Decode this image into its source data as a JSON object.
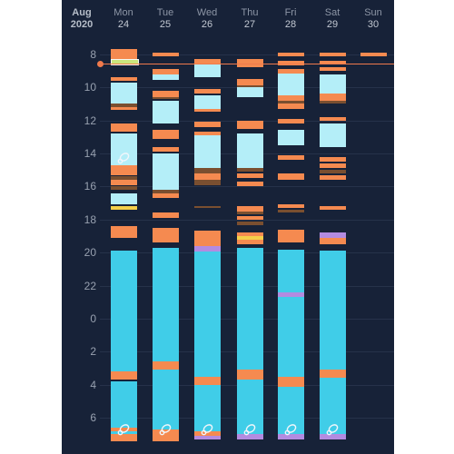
{
  "header": {
    "month": "Aug",
    "year": "2020",
    "days": [
      {
        "name": "Mon",
        "num": "24"
      },
      {
        "name": "Tue",
        "num": "25"
      },
      {
        "name": "Wed",
        "num": "26"
      },
      {
        "name": "Thu",
        "num": "27"
      },
      {
        "name": "Fri",
        "num": "28"
      },
      {
        "name": "Sat",
        "num": "29"
      },
      {
        "name": "Sun",
        "num": "30"
      }
    ]
  },
  "time_axis": {
    "labels": [
      "8",
      "10",
      "12",
      "14",
      "16",
      "18",
      "20",
      "22",
      "0",
      "2",
      "4",
      "6"
    ],
    "start_hour": 7.3,
    "end_hour": 31.6
  },
  "current_time_hour": 8.55,
  "colors": {
    "background": "#172238",
    "sleep": "#40cde8",
    "light_sleep": "#b4eef8",
    "feed": "#f58a50",
    "diaper": "#7a4f30",
    "nap_pale": "#b4eef8",
    "bath": "#f5cf4a",
    "medicine": "#b38be0",
    "green": "#cbe67d",
    "now_line": "#f07a4c"
  },
  "icons": {
    "sleep_marker": "pacifier-icon"
  },
  "events": [
    [
      {
        "t": "feed",
        "s": 7.7,
        "e": 8.3
      },
      {
        "t": "green",
        "s": 8.3,
        "e": 8.55
      },
      {
        "t": "feed",
        "s": 9.4,
        "e": 9.6
      },
      {
        "t": "light",
        "s": 9.7,
        "e": 11.0
      },
      {
        "t": "diaper",
        "s": 11.0,
        "e": 11.2
      },
      {
        "t": "feed",
        "s": 11.2,
        "e": 11.35
      },
      {
        "t": "feed",
        "s": 12.2,
        "e": 12.7
      },
      {
        "t": "light",
        "s": 12.8,
        "e": 14.7
      },
      {
        "t": "feed",
        "s": 14.7,
        "e": 15.3
      },
      {
        "t": "diaper",
        "s": 15.4,
        "e": 15.6
      },
      {
        "t": "feed",
        "s": 15.6,
        "e": 15.9
      },
      {
        "t": "diaper",
        "s": 16.0,
        "e": 16.2
      },
      {
        "t": "light",
        "s": 16.4,
        "e": 17.1
      },
      {
        "t": "bath",
        "s": 17.2,
        "e": 17.4
      },
      {
        "t": "feed",
        "s": 18.4,
        "e": 19.1
      },
      {
        "t": "sleep",
        "s": 19.9,
        "e": 27.2
      },
      {
        "t": "feed",
        "s": 27.2,
        "e": 27.7
      },
      {
        "t": "sleep",
        "s": 27.8,
        "e": 30.6
      },
      {
        "t": "feed",
        "s": 30.6,
        "e": 30.8
      },
      {
        "t": "sleep",
        "s": 30.8,
        "e": 31.0
      },
      {
        "t": "feed",
        "s": 31.0,
        "e": 31.4
      }
    ],
    [
      {
        "t": "feed",
        "s": 7.9,
        "e": 8.15
      },
      {
        "t": "feed",
        "s": 8.9,
        "e": 9.2
      },
      {
        "t": "light",
        "s": 9.2,
        "e": 9.55
      },
      {
        "t": "feed",
        "s": 10.2,
        "e": 10.6
      },
      {
        "t": "diaper",
        "s": 10.6,
        "e": 10.7
      },
      {
        "t": "light",
        "s": 10.8,
        "e": 12.2
      },
      {
        "t": "feed",
        "s": 12.6,
        "e": 13.1
      },
      {
        "t": "feed",
        "s": 13.6,
        "e": 13.9
      },
      {
        "t": "light",
        "s": 14.0,
        "e": 16.2
      },
      {
        "t": "diaper",
        "s": 16.2,
        "e": 16.4
      },
      {
        "t": "feed",
        "s": 16.4,
        "e": 16.7
      },
      {
        "t": "feed",
        "s": 17.6,
        "e": 17.9
      },
      {
        "t": "feed",
        "s": 18.5,
        "e": 19.4
      },
      {
        "t": "sleep",
        "s": 19.7,
        "e": 26.6
      },
      {
        "t": "feed",
        "s": 26.6,
        "e": 27.1
      },
      {
        "t": "sleep",
        "s": 27.1,
        "e": 30.7
      },
      {
        "t": "feed",
        "s": 30.7,
        "e": 31.4
      }
    ],
    [
      {
        "t": "feed",
        "s": 8.3,
        "e": 8.55
      },
      {
        "t": "light",
        "s": 8.6,
        "e": 9.4
      },
      {
        "t": "feed",
        "s": 10.1,
        "e": 10.4
      },
      {
        "t": "light",
        "s": 10.5,
        "e": 11.3
      },
      {
        "t": "feed",
        "s": 11.3,
        "e": 11.5
      },
      {
        "t": "feed",
        "s": 12.1,
        "e": 12.4
      },
      {
        "t": "feed",
        "s": 12.7,
        "e": 12.9
      },
      {
        "t": "light",
        "s": 12.9,
        "e": 14.9
      },
      {
        "t": "diaper",
        "s": 14.9,
        "e": 15.2
      },
      {
        "t": "feed",
        "s": 15.2,
        "e": 15.6
      },
      {
        "t": "diaper",
        "s": 15.6,
        "e": 15.9
      },
      {
        "t": "diaper",
        "s": 17.2,
        "e": 17.3
      },
      {
        "t": "feed",
        "s": 18.7,
        "e": 19.6
      },
      {
        "t": "medicine",
        "s": 19.6,
        "e": 19.95
      },
      {
        "t": "sleep",
        "s": 19.95,
        "e": 27.5
      },
      {
        "t": "feed",
        "s": 27.5,
        "e": 28.0
      },
      {
        "t": "sleep",
        "s": 28.0,
        "e": 30.8
      },
      {
        "t": "feed",
        "s": 30.8,
        "e": 31.1
      },
      {
        "t": "medicine",
        "s": 31.1,
        "e": 31.3
      }
    ],
    [
      {
        "t": "feed",
        "s": 8.3,
        "e": 8.8
      },
      {
        "t": "feed",
        "s": 9.5,
        "e": 9.9
      },
      {
        "t": "diaper",
        "s": 9.9,
        "e": 10.0
      },
      {
        "t": "light",
        "s": 10.0,
        "e": 10.6
      },
      {
        "t": "feed",
        "s": 12.0,
        "e": 12.5
      },
      {
        "t": "light",
        "s": 12.8,
        "e": 14.9
      },
      {
        "t": "diaper",
        "s": 14.9,
        "e": 15.1
      },
      {
        "t": "feed",
        "s": 15.2,
        "e": 15.5
      },
      {
        "t": "feed",
        "s": 15.7,
        "e": 16.0
      },
      {
        "t": "feed",
        "s": 17.2,
        "e": 17.5
      },
      {
        "t": "diaper",
        "s": 17.5,
        "e": 17.7
      },
      {
        "t": "feed",
        "s": 17.8,
        "e": 18.0
      },
      {
        "t": "diaper",
        "s": 18.1,
        "e": 18.35
      },
      {
        "t": "feed",
        "s": 18.8,
        "e": 19.0
      },
      {
        "t": "bath",
        "s": 19.0,
        "e": 19.25
      },
      {
        "t": "feed",
        "s": 19.25,
        "e": 19.5
      },
      {
        "t": "sleep",
        "s": 19.7,
        "e": 27.1
      },
      {
        "t": "feed",
        "s": 27.1,
        "e": 27.7
      },
      {
        "t": "sleep",
        "s": 27.7,
        "e": 31.0
      },
      {
        "t": "medicine",
        "s": 31.0,
        "e": 31.3
      }
    ],
    [
      {
        "t": "feed",
        "s": 7.9,
        "e": 8.15
      },
      {
        "t": "feed",
        "s": 8.4,
        "e": 8.65
      },
      {
        "t": "feed",
        "s": 8.9,
        "e": 9.15
      },
      {
        "t": "light",
        "s": 9.15,
        "e": 10.5
      },
      {
        "t": "feed",
        "s": 10.5,
        "e": 10.8
      },
      {
        "t": "diaper",
        "s": 10.8,
        "e": 11.0
      },
      {
        "t": "feed",
        "s": 11.0,
        "e": 11.3
      },
      {
        "t": "feed",
        "s": 11.9,
        "e": 12.2
      },
      {
        "t": "light",
        "s": 12.6,
        "e": 13.5
      },
      {
        "t": "feed",
        "s": 14.1,
        "e": 14.4
      },
      {
        "t": "feed",
        "s": 15.2,
        "e": 15.6
      },
      {
        "t": "feed",
        "s": 17.1,
        "e": 17.3
      },
      {
        "t": "diaper",
        "s": 17.4,
        "e": 17.6
      },
      {
        "t": "feed",
        "s": 18.6,
        "e": 19.4
      },
      {
        "t": "sleep",
        "s": 19.8,
        "e": 22.4
      },
      {
        "t": "medicine",
        "s": 22.4,
        "e": 22.7
      },
      {
        "t": "sleep",
        "s": 22.7,
        "e": 27.5
      },
      {
        "t": "feed",
        "s": 27.5,
        "e": 28.1
      },
      {
        "t": "sleep",
        "s": 28.1,
        "e": 31.0
      },
      {
        "t": "medicine",
        "s": 31.0,
        "e": 31.3
      }
    ],
    [
      {
        "t": "feed",
        "s": 7.9,
        "e": 8.15
      },
      {
        "t": "feed",
        "s": 8.4,
        "e": 8.6
      },
      {
        "t": "feed",
        "s": 8.8,
        "e": 9.0
      },
      {
        "t": "light",
        "s": 9.2,
        "e": 10.4
      },
      {
        "t": "feed",
        "s": 10.4,
        "e": 10.8
      },
      {
        "t": "diaper",
        "s": 10.8,
        "e": 11.0
      },
      {
        "t": "feed",
        "s": 11.8,
        "e": 12.0
      },
      {
        "t": "light",
        "s": 12.2,
        "e": 13.6
      },
      {
        "t": "feed",
        "s": 14.2,
        "e": 14.5
      },
      {
        "t": "feed",
        "s": 14.6,
        "e": 14.9
      },
      {
        "t": "diaper",
        "s": 15.0,
        "e": 15.2
      },
      {
        "t": "feed",
        "s": 15.3,
        "e": 15.6
      },
      {
        "t": "feed",
        "s": 17.2,
        "e": 17.4
      },
      {
        "t": "medicine",
        "s": 18.8,
        "e": 19.1
      },
      {
        "t": "feed",
        "s": 19.1,
        "e": 19.5
      },
      {
        "t": "sleep",
        "s": 19.9,
        "e": 27.1
      },
      {
        "t": "feed",
        "s": 27.1,
        "e": 27.6
      },
      {
        "t": "sleep",
        "s": 27.6,
        "e": 31.0
      },
      {
        "t": "medicine",
        "s": 31.0,
        "e": 31.3
      }
    ],
    [
      {
        "t": "feed",
        "s": 7.9,
        "e": 8.15
      }
    ]
  ],
  "sleep_markers": [
    {
      "day": 0,
      "h": 14.3
    },
    {
      "day": 0,
      "h": 30.7
    },
    {
      "day": 1,
      "h": 30.7
    },
    {
      "day": 2,
      "h": 30.7
    },
    {
      "day": 3,
      "h": 30.7
    },
    {
      "day": 4,
      "h": 30.7
    },
    {
      "day": 5,
      "h": 30.7
    }
  ]
}
